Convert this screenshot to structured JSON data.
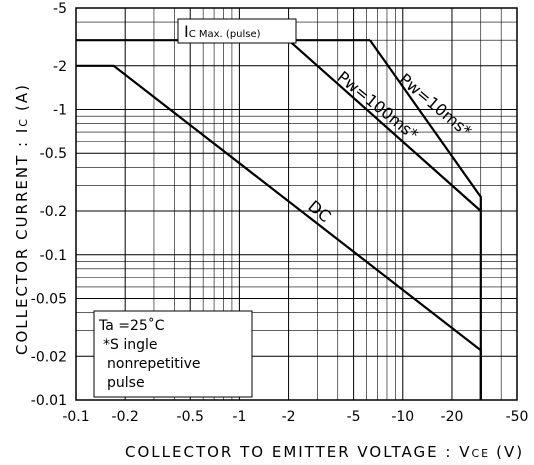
{
  "chart_data": {
    "type": "line",
    "xlabel": "COLLECTOR TO EMITTER VOLTAGE : V",
    "xlabel_sub": "CE",
    "xlabel_unit": "(V)",
    "ylabel": "COLLECTOR CURRENT : I",
    "ylabel_sub": "C",
    "ylabel_unit": "(A)",
    "x_scale": "log",
    "y_scale": "log",
    "xlim": [
      -0.1,
      -50
    ],
    "ylim": [
      -0.01,
      -5
    ],
    "x_ticks": [
      "-0.1",
      "-0.2",
      "-0.5",
      "-1",
      "-2",
      "-5",
      "-10",
      "-20",
      "-50"
    ],
    "y_ticks": [
      "-5",
      "-2",
      "-1",
      "-0.5",
      "-0.2",
      "-0.1",
      "-0.05",
      "-0.02",
      "-0.01"
    ],
    "grid": true,
    "series": [
      {
        "name": "IC Max. (pulse)",
        "label_main": "I",
        "label_sub": "C Max. (pulse)",
        "x": [
          -0.1,
          -6.3
        ],
        "y": [
          -3,
          -3
        ]
      },
      {
        "name": "Pw=10ms*",
        "x": [
          -6.3,
          -30,
          -30
        ],
        "y": [
          -3,
          -0.25,
          -0.01
        ]
      },
      {
        "name": "Pw=100ms*",
        "x": [
          -2,
          -30
        ],
        "y": [
          -3,
          -0.2
        ]
      },
      {
        "name": "DC",
        "x": [
          -0.1,
          -0.17,
          -30,
          -30
        ],
        "y": [
          -2,
          -2,
          -0.022,
          -0.01
        ]
      }
    ],
    "annotations": [
      "Ta =25˚C",
      "*S ingle",
      "nonrepetitive",
      "pulse"
    ]
  }
}
